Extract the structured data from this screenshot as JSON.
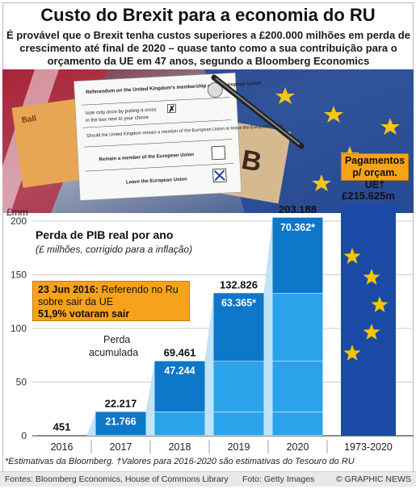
{
  "title": "Custo do Brexit para a economia do RU",
  "subtitle": "É provável que o Brexit tenha custos superiores a £200.000 milhões em perda de crescimento até final de 2020 – quase tanto como a sua contribuição para o orçamento da UE em 47 anos, segundo a Bloomberg Economics",
  "ballot": {
    "header": "Referendum on the United Kingdom's membership of the European Union",
    "instruction": "Vote only once by putting a cross",
    "instruction2": "in the box next to your choice",
    "question": "Should the United Kingdom remain a member of the European Union or leave the European Union",
    "remain": "Remain a member of the European Union",
    "leave": "Leave the European Union",
    "cross": "✗",
    "envelope_letter": "B",
    "envelope_text": "Ball"
  },
  "callout": {
    "date": "23 Jun 2016:",
    "text": "Referendo no Ru sobre sair da UE",
    "result": "51,9% votaram sair"
  },
  "payments_label": "Pagamentos p/ orçam. UE†",
  "annotation": "Perda acumulada",
  "chart_data": {
    "type": "bar",
    "title": "Perda de PIB real por ano",
    "subtitle": "(£ milhões, corrigido para a inflação)",
    "ylabel": "£mm",
    "ylim": [
      0,
      200
    ],
    "yticks": [
      0,
      50,
      100,
      150,
      200
    ],
    "categories": [
      "2016",
      "2017",
      "2018",
      "2019",
      "2020"
    ],
    "annual": [
      {
        "value": 451,
        "label": ""
      },
      {
        "value": 21766,
        "label": "21.766"
      },
      {
        "value": 47244,
        "label": "47.244"
      },
      {
        "value": 63365,
        "label": "63.365*"
      },
      {
        "value": 70362,
        "label": "70.362*"
      }
    ],
    "cumulative": [
      {
        "value": 451,
        "label": "451"
      },
      {
        "value": 22217,
        "label": "22.217"
      },
      {
        "value": 69461,
        "label": "69.461"
      },
      {
        "value": 132826,
        "label": "132.826"
      },
      {
        "value": 203188,
        "label": "203.188"
      }
    ],
    "comparison": {
      "category": "1973-2020",
      "value": 215625,
      "label": "£215.625m"
    },
    "colors": {
      "annual": "#0d77c9",
      "cumulative": "#2aa3ea",
      "area": "#bfe4f7",
      "eu_blue": "#1b4aa6",
      "eu_star": "#f6c400",
      "orange": "#f7a21b"
    }
  },
  "footnote": "*Estimativas da Bloomberg. †Valores para 2016-2020 são estimativas do Tesouro do RU",
  "footer": {
    "sources": "Fontes: Bloomberg Economics, House of Commons Library",
    "photo": "Foto: Getty Images",
    "credit": "© GRAPHIC NEWS"
  }
}
